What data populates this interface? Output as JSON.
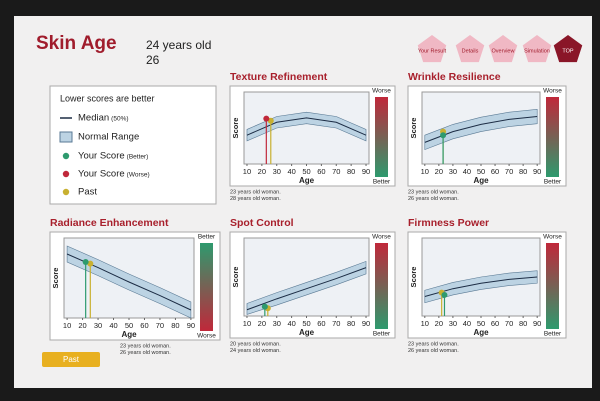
{
  "header": {
    "title": "Skin Age",
    "age_now": "24 years old",
    "age_past": "26"
  },
  "nav": [
    "Your Result",
    "Details",
    "Overview",
    "Simulation",
    "TOP"
  ],
  "legend": {
    "heading": "Lower scores are better",
    "items": [
      {
        "label": "Median",
        "note": "(50%)"
      },
      {
        "label": "Normal Range"
      },
      {
        "label": "Your Score",
        "note": "(Better)"
      },
      {
        "label": "Your Score",
        "note": "(Worse)"
      },
      {
        "label": "Past"
      }
    ]
  },
  "past_button": "Past",
  "charts": [
    {
      "title": "Texture Refinement",
      "x_label": "Age",
      "y_label": "Score",
      "xlim": [
        8,
        92
      ],
      "ylim": [
        0,
        100
      ],
      "xticks": [
        10,
        20,
        30,
        40,
        50,
        60,
        70,
        80,
        90
      ],
      "scale_top": "Worse",
      "scale_bottom": "Better",
      "top_color": "#c0283a",
      "bottom_color": "#2e9a6e",
      "curve_x": [
        10,
        30,
        50,
        70,
        90
      ],
      "median": [
        40,
        58,
        64,
        58,
        40
      ],
      "low": [
        32,
        50,
        56,
        50,
        32
      ],
      "high": [
        48,
        66,
        72,
        66,
        48
      ],
      "score": {
        "x": 23,
        "y": 63,
        "color": "#c0283a"
      },
      "past": {
        "x": 26,
        "y": 60,
        "color": "#c8b030"
      },
      "notes": [
        "23 years old woman.",
        "28 years old woman."
      ]
    },
    {
      "title": "Wrinkle Resilience",
      "x_label": "Age",
      "y_label": "Score",
      "xlim": [
        8,
        92
      ],
      "ylim": [
        0,
        100
      ],
      "xticks": [
        10,
        20,
        30,
        40,
        50,
        60,
        70,
        80,
        90
      ],
      "scale_top": "Worse",
      "scale_bottom": "Better",
      "top_color": "#c0283a",
      "bottom_color": "#2e9a6e",
      "curve_x": [
        10,
        30,
        50,
        70,
        90
      ],
      "median": [
        30,
        45,
        55,
        62,
        66
      ],
      "low": [
        20,
        35,
        45,
        52,
        56
      ],
      "high": [
        40,
        55,
        65,
        72,
        76
      ],
      "score": {
        "x": 23,
        "y": 40,
        "color": "#2e9a6e"
      },
      "past": {
        "x": 23,
        "y": 45,
        "color": "#c8b030"
      },
      "notes": [
        "23 years old woman.",
        "26 years old woman."
      ]
    },
    {
      "title": "Radiance Enhancement",
      "x_label": "Age",
      "y_label": "Score",
      "xlim": [
        8,
        92
      ],
      "ylim": [
        0,
        100
      ],
      "xticks": [
        10,
        20,
        30,
        40,
        50,
        60,
        70,
        80,
        90
      ],
      "scale_top": "Better",
      "scale_bottom": "Worse",
      "top_color": "#2e9a6e",
      "bottom_color": "#c0283a",
      "curve_x": [
        10,
        30,
        50,
        70,
        90
      ],
      "median": [
        80,
        63,
        45,
        28,
        10
      ],
      "low": [
        70,
        53,
        35,
        18,
        0
      ],
      "high": [
        90,
        73,
        55,
        38,
        20
      ],
      "score": {
        "x": 22,
        "y": 70,
        "color": "#2e9a6e"
      },
      "past": {
        "x": 25,
        "y": 68,
        "color": "#c8b030"
      },
      "notes": [
        "23 years old woman.",
        "26 years old woman."
      ]
    },
    {
      "title": "Spot Control",
      "x_label": "Age",
      "y_label": "Score",
      "xlim": [
        8,
        92
      ],
      "ylim": [
        0,
        100
      ],
      "xticks": [
        10,
        20,
        30,
        40,
        50,
        60,
        70,
        80,
        90
      ],
      "scale_top": "Worse",
      "scale_bottom": "Better",
      "top_color": "#c0283a",
      "bottom_color": "#2e9a6e",
      "curve_x": [
        10,
        30,
        50,
        70,
        90
      ],
      "median": [
        8,
        22,
        35,
        48,
        62
      ],
      "low": [
        2,
        14,
        27,
        40,
        54
      ],
      "high": [
        16,
        30,
        43,
        56,
        70
      ],
      "score": {
        "x": 22,
        "y": 12,
        "color": "#2e9a6e"
      },
      "past": {
        "x": 24,
        "y": 10,
        "color": "#c8b030"
      },
      "notes": [
        "20 years old woman.",
        "24 years old woman."
      ]
    },
    {
      "title": "Firmness Power",
      "x_label": "Age",
      "y_label": "Score",
      "xlim": [
        8,
        92
      ],
      "ylim": [
        0,
        100
      ],
      "xticks": [
        10,
        20,
        30,
        40,
        50,
        60,
        70,
        80,
        90
      ],
      "scale_top": "Worse",
      "scale_bottom": "Better",
      "top_color": "#c0283a",
      "bottom_color": "#2e9a6e",
      "curve_x": [
        10,
        30,
        50,
        70,
        90
      ],
      "median": [
        25,
        35,
        42,
        47,
        50
      ],
      "low": [
        17,
        27,
        34,
        39,
        42
      ],
      "high": [
        33,
        43,
        50,
        55,
        58
      ],
      "score": {
        "x": 24,
        "y": 27,
        "color": "#2e9a6e"
      },
      "past": {
        "x": 22,
        "y": 30,
        "color": "#c8b030"
      },
      "notes": [
        "23 years old woman.",
        "26 years old woman."
      ]
    }
  ]
}
